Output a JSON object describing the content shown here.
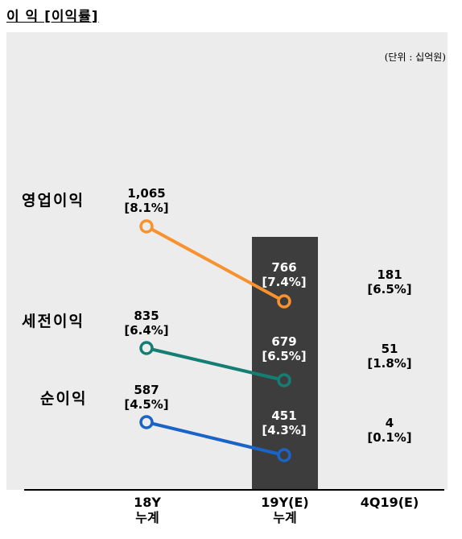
{
  "title": "이 익 [이익률]",
  "unit_note": "(단위 : 십억원)",
  "colors": {
    "operating": "#f7922e",
    "pretax": "#147e74",
    "net": "#1a63c7",
    "highlight": "#3d3d3d",
    "panel": "#ececec"
  },
  "chart_data": {
    "type": "line",
    "title": "이 익 [이익률]",
    "categories": [
      {
        "line1": "18Y",
        "line2": "누계"
      },
      {
        "line1": "19Y(E)",
        "line2": "누계"
      },
      {
        "line1": "4Q19(E)",
        "line2": ""
      }
    ],
    "series": [
      {
        "name": "영업이익",
        "color": "#f7922e",
        "values": [
          1065,
          766,
          181
        ],
        "labels": [
          "1,065",
          "766",
          "181"
        ],
        "margins": [
          "[8.1%]",
          "[7.4%]",
          "[6.5%]"
        ]
      },
      {
        "name": "세전이익",
        "color": "#147e74",
        "values": [
          835,
          679,
          51
        ],
        "labels": [
          "835",
          "679",
          "51"
        ],
        "margins": [
          "[6.4%]",
          "[6.5%]",
          "[1.8%]"
        ]
      },
      {
        "name": "순이익",
        "color": "#1a63c7",
        "values": [
          587,
          451,
          4
        ],
        "labels": [
          "587",
          "451",
          "4"
        ],
        "margins": [
          "[4.5%]",
          "[4.3%]",
          "[0.1%]"
        ]
      }
    ],
    "lines_connect": "first two categories only",
    "highlighted_category": "19Y(E) 누계",
    "legend": "series names at left of lines"
  }
}
